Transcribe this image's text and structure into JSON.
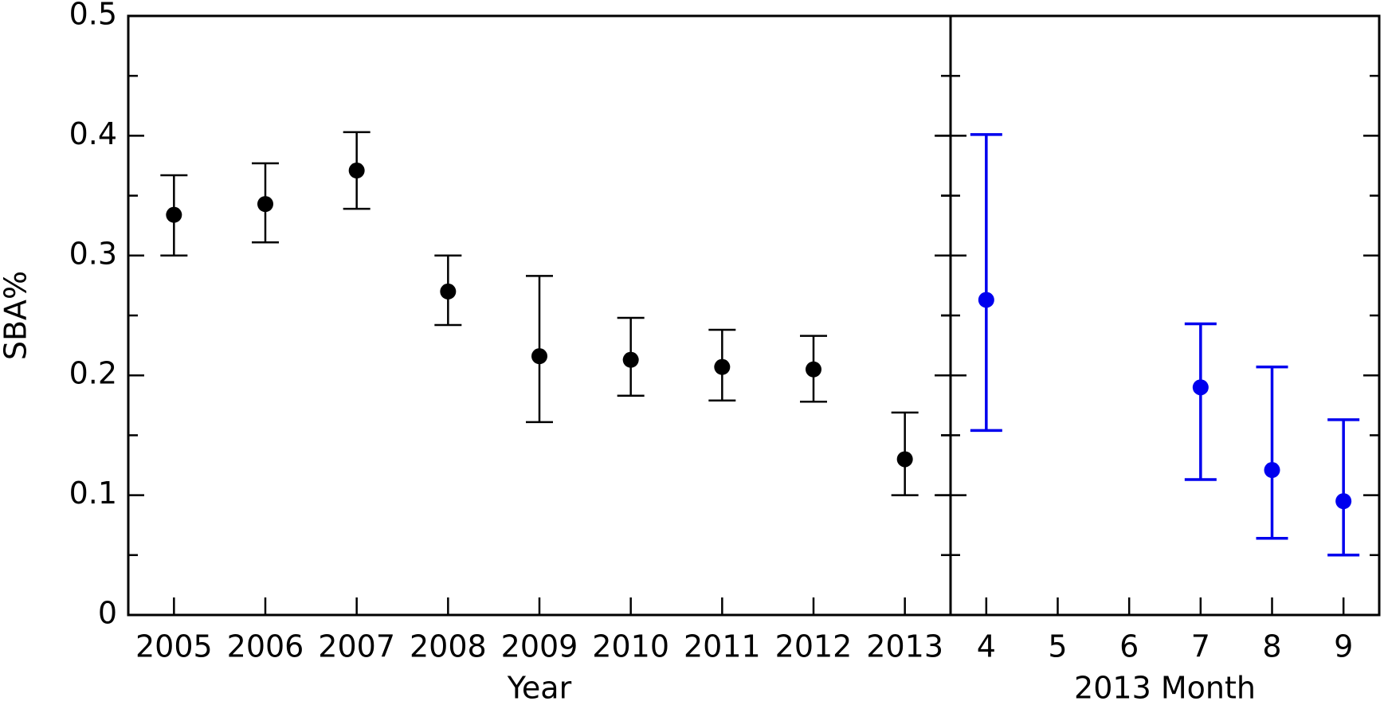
{
  "chart_data": [
    {
      "type": "errorbar",
      "x_label": "Year",
      "y_label": "SBA%",
      "categories": [
        "2005",
        "2006",
        "2007",
        "2008",
        "2009",
        "2010",
        "2011",
        "2012",
        "2013"
      ],
      "values": [
        0.334,
        0.343,
        0.371,
        0.27,
        0.216,
        0.213,
        0.207,
        0.205,
        0.13
      ],
      "lower": [
        0.3,
        0.311,
        0.339,
        0.242,
        0.161,
        0.183,
        0.179,
        0.178,
        0.1
      ],
      "upper": [
        0.367,
        0.377,
        0.403,
        0.3,
        0.283,
        0.248,
        0.238,
        0.233,
        0.169
      ],
      "color": "#000000",
      "ylim": [
        0,
        0.5
      ],
      "yticks": [
        0,
        0.1,
        0.2,
        0.3,
        0.4,
        0.5
      ],
      "yminorticks": [
        0.05,
        0.15,
        0.25,
        0.35,
        0.45
      ]
    },
    {
      "type": "errorbar",
      "x_label": "2013  Month",
      "x": [
        4,
        7,
        8,
        9
      ],
      "values": [
        0.263,
        0.19,
        0.121,
        0.095
      ],
      "lower": [
        0.154,
        0.113,
        0.064,
        0.05
      ],
      "upper": [
        0.401,
        0.243,
        0.207,
        0.163
      ],
      "color": "#0000ee",
      "xlim": [
        3.5,
        9.5
      ],
      "xticks": [
        4,
        5,
        6,
        7,
        8,
        9
      ],
      "ylim": [
        0,
        0.5
      ],
      "yticks": [
        0,
        0.1,
        0.2,
        0.3,
        0.4,
        0.5
      ],
      "yminorticks": [
        0.05,
        0.15,
        0.25,
        0.35,
        0.45
      ]
    }
  ]
}
